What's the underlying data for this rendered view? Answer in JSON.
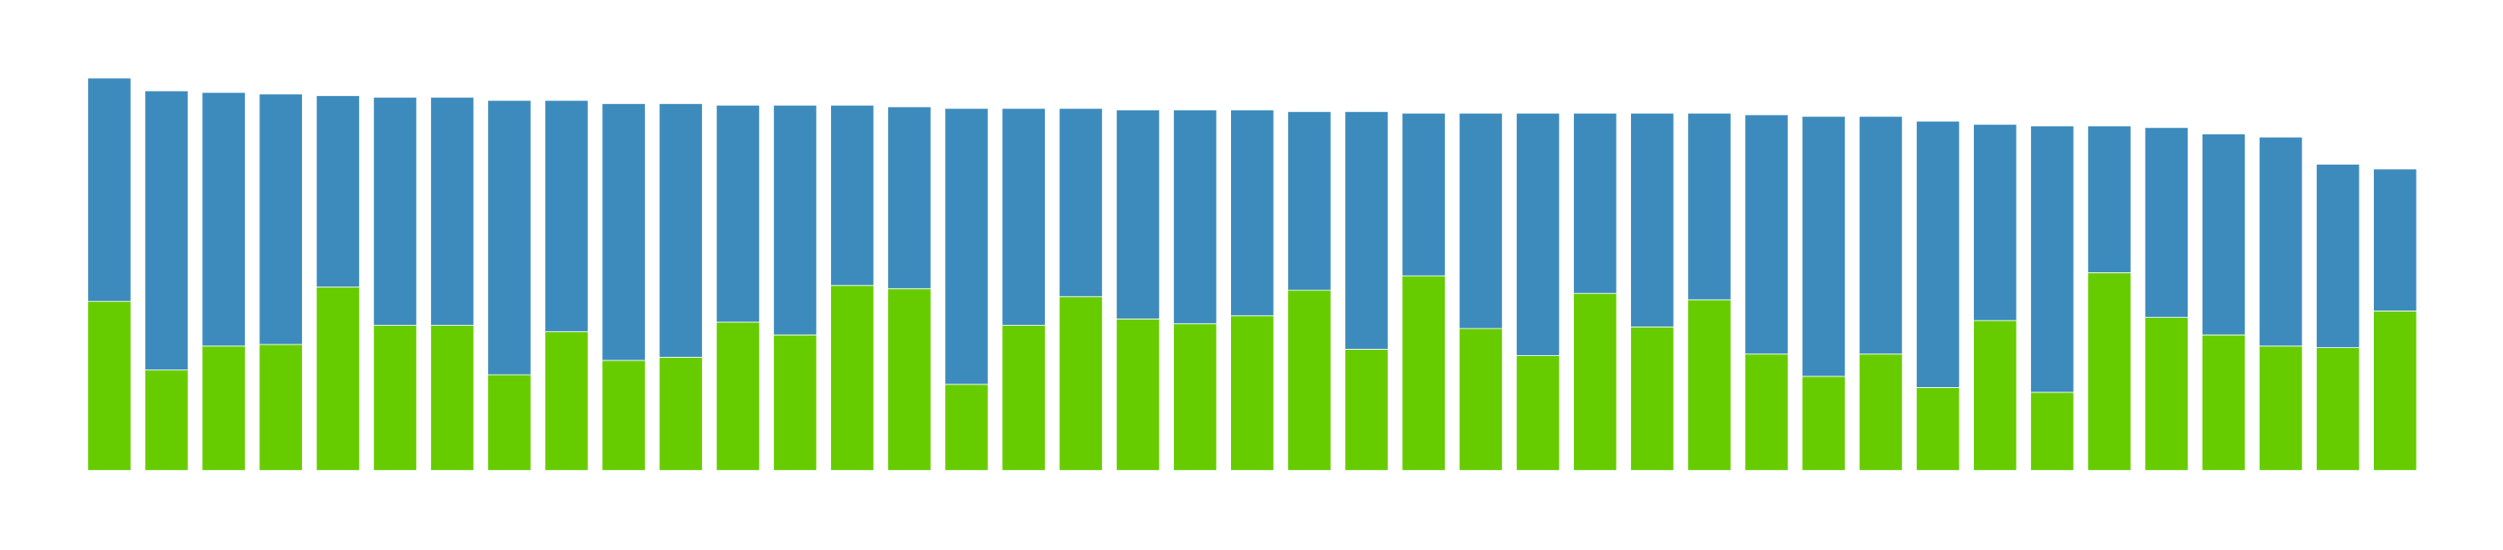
{
  "chart_data": {
    "type": "bar",
    "stacked": true,
    "series": [
      {
        "color": "#66cc00",
        "values": [
          106,
          63,
          78,
          79,
          115,
          91,
          91,
          60,
          87,
          69,
          71,
          93,
          85,
          116,
          114,
          54,
          91,
          109,
          95,
          92,
          97,
          113,
          76,
          122,
          89,
          72,
          111,
          90,
          107,
          73,
          59,
          73,
          52,
          94,
          49,
          124,
          96,
          85,
          78,
          77,
          100
        ]
      },
      {
        "color": "#3d8bbd",
        "values": [
          140,
          175,
          159,
          157,
          120,
          143,
          143,
          172,
          145,
          161,
          159,
          136,
          144,
          113,
          114,
          173,
          136,
          118,
          131,
          134,
          129,
          112,
          149,
          102,
          135,
          152,
          113,
          134,
          117,
          150,
          163,
          149,
          167,
          123,
          167,
          92,
          119,
          126,
          131,
          115,
          89
        ]
      }
    ]
  }
}
